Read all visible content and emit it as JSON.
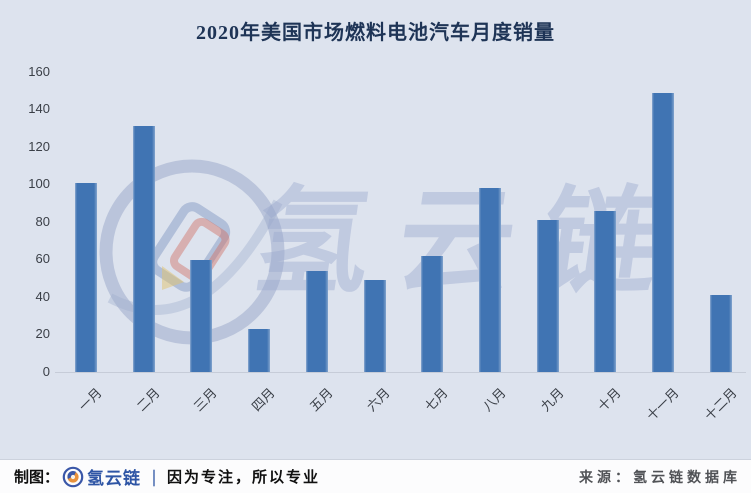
{
  "chart_data": {
    "type": "bar",
    "title": "2020年美国市场燃料电池汽车月度销量",
    "categories": [
      "一月",
      "二月",
      "三月",
      "四月",
      "五月",
      "六月",
      "七月",
      "八月",
      "九月",
      "十月",
      "十一月",
      "十二月"
    ],
    "values": [
      101,
      131,
      60,
      23,
      54,
      49,
      62,
      98,
      81,
      86,
      149,
      41
    ],
    "xlabel": "",
    "ylabel": "",
    "ylim": [
      0,
      160
    ],
    "yticks": [
      0,
      20,
      40,
      60,
      80,
      100,
      120,
      140,
      160
    ],
    "grid": false,
    "legend_position": "none",
    "bar_color": "#4074b3",
    "background_color": "#dde3ee"
  },
  "watermark": {
    "text": "氢云链",
    "logo_name": "hydrogen-cloud-chain-ring-logo"
  },
  "footer": {
    "made_by_label": "制图：",
    "brand": "氢云链",
    "separator": "｜",
    "slogan": "因为专注，所以专业",
    "source": "来源：氢云链数据库"
  },
  "colors": {
    "accent_bar": "#4074b3",
    "title_text": "#1e3456",
    "brand_blue": "#2e55a5",
    "logo_orange": "#e8913c",
    "watermark": "#98a8ce"
  }
}
